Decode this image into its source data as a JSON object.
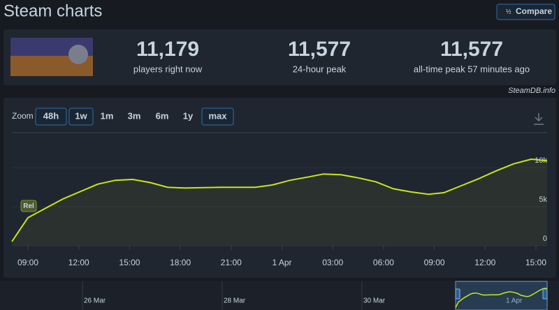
{
  "header": {
    "title": "Steam charts",
    "compare": "Compare",
    "source": "SteamDB.info"
  },
  "stats": [
    {
      "value": "11,179",
      "label": "players right now"
    },
    {
      "value": "11,577",
      "label": "24-hour peak"
    },
    {
      "value": "11,577",
      "label": "all-time peak 57 minutes ago"
    }
  ],
  "zoom": {
    "label": "Zoom",
    "options": [
      "48h",
      "1w",
      "1m",
      "3m",
      "6m",
      "1y",
      "max"
    ]
  },
  "chart_data": {
    "type": "line",
    "color": "#c8e619",
    "x": [
      8.05,
      9,
      11.06,
      13.13,
      14.16,
      15.19,
      16.22,
      17.25,
      18.29,
      20.35,
      22.41,
      23.44,
      24.48,
      25.51,
      26.46,
      27.49,
      28.52,
      29.55,
      30.58,
      31.62,
      32.65,
      33.56,
      34.59,
      35.62,
      36.65,
      37.68,
      38.72,
      39.66
    ],
    "values": [
      540,
      3600,
      6000,
      7900,
      8400,
      8500,
      8100,
      7500,
      7400,
      7500,
      7500,
      7800,
      8400,
      8800,
      9200,
      9100,
      8700,
      8200,
      7300,
      6900,
      6600,
      6800,
      7700,
      8600,
      9600,
      10500,
      11100,
      10900
    ],
    "xlim": [
      8.05,
      39.66
    ],
    "xticks": [
      {
        "value": 9,
        "label": "09:00"
      },
      {
        "value": 12,
        "label": "12:00"
      },
      {
        "value": 15,
        "label": "15:00"
      },
      {
        "value": 18,
        "label": "18:00"
      },
      {
        "value": 21,
        "label": "21:00"
      },
      {
        "value": 24,
        "label": "1 Apr"
      },
      {
        "value": 27,
        "label": "03:00"
      },
      {
        "value": 30,
        "label": "06:00"
      },
      {
        "value": 33,
        "label": "09:00"
      },
      {
        "value": 36,
        "label": "12:00"
      },
      {
        "value": 39,
        "label": "15:00"
      }
    ],
    "ylim": [
      0,
      14500
    ],
    "yticks": [
      0,
      {
        "value": 5000,
        "label": "5k"
      },
      {
        "value": 10000,
        "label": "10k"
      }
    ],
    "grid": true,
    "annotation": {
      "text": "Rel",
      "x": 9
    }
  },
  "navigator": {
    "labels": [
      "26 Mar",
      "28 Mar",
      "30 Mar",
      "1 Apr"
    ]
  }
}
